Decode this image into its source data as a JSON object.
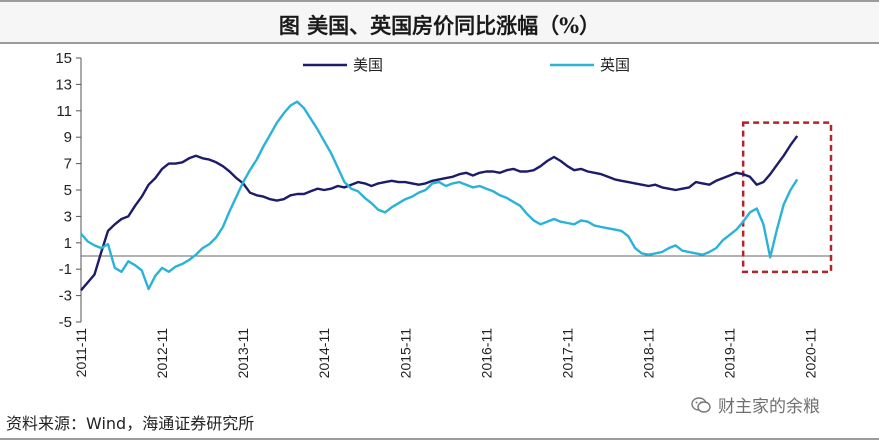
{
  "header": {
    "title": "图  美国、英国房价同比涨幅（%）"
  },
  "footer": {
    "source": "资料来源：Wind，海通证券研究所"
  },
  "watermark": {
    "text": "财主家的余粮",
    "icon": "wechat-icon"
  },
  "chart_data": {
    "type": "line",
    "title": "图  美国、英国房价同比涨幅（%）",
    "xlabel": "",
    "ylabel": "",
    "ylim": [
      -5,
      15
    ],
    "yticks": [
      -5,
      -3,
      -1,
      1,
      3,
      5,
      7,
      9,
      11,
      13,
      15
    ],
    "xlim": [
      0,
      111
    ],
    "xticks": [
      {
        "x": 0,
        "label": "2011-11"
      },
      {
        "x": 12,
        "label": "2012-11"
      },
      {
        "x": 24,
        "label": "2013-11"
      },
      {
        "x": 36,
        "label": "2014-11"
      },
      {
        "x": 48,
        "label": "2015-11"
      },
      {
        "x": 60,
        "label": "2016-11"
      },
      {
        "x": 72,
        "label": "2017-11"
      },
      {
        "x": 84,
        "label": "2018-11"
      },
      {
        "x": 96,
        "label": "2019-11"
      },
      {
        "x": 108,
        "label": "2020-11"
      }
    ],
    "legend_position": "top-center",
    "grid": false,
    "series": [
      {
        "name": "美国",
        "color": "#1c1c6b",
        "points": [
          [
            0,
            -2.6
          ],
          [
            1,
            -2.0
          ],
          [
            2,
            -1.4
          ],
          [
            3,
            0.3
          ],
          [
            4,
            1.9
          ],
          [
            5,
            2.4
          ],
          [
            6,
            2.8
          ],
          [
            7,
            3.0
          ],
          [
            8,
            3.8
          ],
          [
            9,
            4.5
          ],
          [
            10,
            5.4
          ],
          [
            11,
            5.9
          ],
          [
            12,
            6.6
          ],
          [
            13,
            7.0
          ],
          [
            14,
            7.0
          ],
          [
            15,
            7.1
          ],
          [
            16,
            7.4
          ],
          [
            17,
            7.6
          ],
          [
            18,
            7.4
          ],
          [
            19,
            7.3
          ],
          [
            20,
            7.1
          ],
          [
            21,
            6.8
          ],
          [
            22,
            6.4
          ],
          [
            23,
            5.9
          ],
          [
            24,
            5.5
          ],
          [
            25,
            4.8
          ],
          [
            26,
            4.6
          ],
          [
            27,
            4.5
          ],
          [
            28,
            4.3
          ],
          [
            29,
            4.2
          ],
          [
            30,
            4.3
          ],
          [
            31,
            4.6
          ],
          [
            32,
            4.7
          ],
          [
            33,
            4.7
          ],
          [
            34,
            4.9
          ],
          [
            35,
            5.1
          ],
          [
            36,
            5.0
          ],
          [
            37,
            5.1
          ],
          [
            38,
            5.3
          ],
          [
            39,
            5.2
          ],
          [
            40,
            5.4
          ],
          [
            41,
            5.6
          ],
          [
            42,
            5.5
          ],
          [
            43,
            5.3
          ],
          [
            44,
            5.5
          ],
          [
            45,
            5.6
          ],
          [
            46,
            5.7
          ],
          [
            47,
            5.6
          ],
          [
            48,
            5.6
          ],
          [
            49,
            5.5
          ],
          [
            50,
            5.4
          ],
          [
            51,
            5.5
          ],
          [
            52,
            5.7
          ],
          [
            53,
            5.8
          ],
          [
            54,
            5.9
          ],
          [
            55,
            6.0
          ],
          [
            56,
            6.2
          ],
          [
            57,
            6.3
          ],
          [
            58,
            6.1
          ],
          [
            59,
            6.3
          ],
          [
            60,
            6.4
          ],
          [
            61,
            6.4
          ],
          [
            62,
            6.3
          ],
          [
            63,
            6.5
          ],
          [
            64,
            6.6
          ],
          [
            65,
            6.4
          ],
          [
            66,
            6.4
          ],
          [
            67,
            6.5
          ],
          [
            68,
            6.8
          ],
          [
            69,
            7.2
          ],
          [
            70,
            7.5
          ],
          [
            71,
            7.2
          ],
          [
            72,
            6.8
          ],
          [
            73,
            6.5
          ],
          [
            74,
            6.6
          ],
          [
            75,
            6.4
          ],
          [
            76,
            6.3
          ],
          [
            77,
            6.2
          ],
          [
            78,
            6.0
          ],
          [
            79,
            5.8
          ],
          [
            80,
            5.7
          ],
          [
            81,
            5.6
          ],
          [
            82,
            5.5
          ],
          [
            83,
            5.4
          ],
          [
            84,
            5.3
          ],
          [
            85,
            5.4
          ],
          [
            86,
            5.2
          ],
          [
            87,
            5.1
          ],
          [
            88,
            5.0
          ],
          [
            89,
            5.1
          ],
          [
            90,
            5.2
          ],
          [
            91,
            5.6
          ],
          [
            92,
            5.5
          ],
          [
            93,
            5.4
          ],
          [
            94,
            5.7
          ],
          [
            95,
            5.9
          ],
          [
            96,
            6.1
          ],
          [
            97,
            6.3
          ],
          [
            98,
            6.2
          ],
          [
            99,
            6.0
          ],
          [
            100,
            5.4
          ],
          [
            101,
            5.6
          ],
          [
            102,
            6.2
          ],
          [
            103,
            6.9
          ],
          [
            104,
            7.6
          ],
          [
            105,
            8.4
          ],
          [
            106,
            9.1
          ]
        ]
      },
      {
        "name": "英国",
        "color": "#2ab3d6",
        "points": [
          [
            0,
            1.7
          ],
          [
            1,
            1.1
          ],
          [
            2,
            0.8
          ],
          [
            3,
            0.6
          ],
          [
            4,
            0.9
          ],
          [
            5,
            -0.9
          ],
          [
            6,
            -1.2
          ],
          [
            7,
            -0.4
          ],
          [
            8,
            -0.7
          ],
          [
            9,
            -1.1
          ],
          [
            10,
            -2.5
          ],
          [
            11,
            -1.5
          ],
          [
            12,
            -0.9
          ],
          [
            13,
            -1.2
          ],
          [
            14,
            -0.8
          ],
          [
            15,
            -0.6
          ],
          [
            16,
            -0.3
          ],
          [
            17,
            0.1
          ],
          [
            18,
            0.6
          ],
          [
            19,
            0.9
          ],
          [
            20,
            1.4
          ],
          [
            21,
            2.2
          ],
          [
            22,
            3.4
          ],
          [
            23,
            4.5
          ],
          [
            24,
            5.6
          ],
          [
            25,
            6.5
          ],
          [
            26,
            7.3
          ],
          [
            27,
            8.3
          ],
          [
            28,
            9.2
          ],
          [
            29,
            10.1
          ],
          [
            30,
            10.8
          ],
          [
            31,
            11.4
          ],
          [
            32,
            11.7
          ],
          [
            33,
            11.2
          ],
          [
            34,
            10.4
          ],
          [
            35,
            9.6
          ],
          [
            36,
            8.7
          ],
          [
            37,
            7.8
          ],
          [
            38,
            6.7
          ],
          [
            39,
            5.6
          ],
          [
            40,
            5.1
          ],
          [
            41,
            4.9
          ],
          [
            42,
            4.4
          ],
          [
            43,
            4.0
          ],
          [
            44,
            3.5
          ],
          [
            45,
            3.3
          ],
          [
            46,
            3.7
          ],
          [
            47,
            4.0
          ],
          [
            48,
            4.3
          ],
          [
            49,
            4.5
          ],
          [
            50,
            4.8
          ],
          [
            51,
            5.0
          ],
          [
            52,
            5.5
          ],
          [
            53,
            5.6
          ],
          [
            54,
            5.3
          ],
          [
            55,
            5.5
          ],
          [
            56,
            5.6
          ],
          [
            57,
            5.4
          ],
          [
            58,
            5.2
          ],
          [
            59,
            5.3
          ],
          [
            60,
            5.1
          ],
          [
            61,
            4.9
          ],
          [
            62,
            4.6
          ],
          [
            63,
            4.4
          ],
          [
            64,
            4.1
          ],
          [
            65,
            3.8
          ],
          [
            66,
            3.2
          ],
          [
            67,
            2.7
          ],
          [
            68,
            2.4
          ],
          [
            69,
            2.6
          ],
          [
            70,
            2.8
          ],
          [
            71,
            2.6
          ],
          [
            72,
            2.5
          ],
          [
            73,
            2.4
          ],
          [
            74,
            2.7
          ],
          [
            75,
            2.6
          ],
          [
            76,
            2.3
          ],
          [
            77,
            2.2
          ],
          [
            78,
            2.1
          ],
          [
            79,
            2.0
          ],
          [
            80,
            1.9
          ],
          [
            81,
            1.5
          ],
          [
            82,
            0.6
          ],
          [
            83,
            0.2
          ],
          [
            84,
            0.1
          ],
          [
            85,
            0.2
          ],
          [
            86,
            0.3
          ],
          [
            87,
            0.6
          ],
          [
            88,
            0.8
          ],
          [
            89,
            0.4
          ],
          [
            90,
            0.3
          ],
          [
            91,
            0.2
          ],
          [
            92,
            0.1
          ],
          [
            93,
            0.3
          ],
          [
            94,
            0.6
          ],
          [
            95,
            1.2
          ],
          [
            96,
            1.6
          ],
          [
            97,
            2.0
          ],
          [
            98,
            2.6
          ],
          [
            99,
            3.3
          ],
          [
            100,
            3.6
          ],
          [
            101,
            2.4
          ],
          [
            102,
            -0.1
          ],
          [
            103,
            2.0
          ],
          [
            104,
            3.9
          ],
          [
            105,
            5.0
          ],
          [
            106,
            5.8
          ]
        ]
      }
    ],
    "annotation": {
      "type": "dashed-box",
      "color": "#b0242a",
      "x_range": [
        98,
        111
      ],
      "y_range": [
        -1.2,
        10.1
      ]
    }
  }
}
